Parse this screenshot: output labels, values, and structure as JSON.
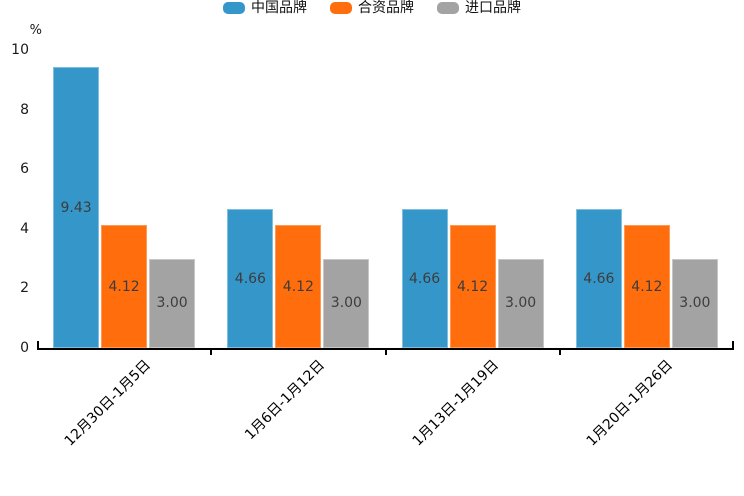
{
  "page": {
    "background": "#FFFFFF"
  },
  "chart_data": {
    "type": "bar",
    "title": "",
    "xlabel": "",
    "ylabel": "%",
    "categories": [
      "12月30日-1月5日",
      "1月6日-1月12日",
      "1月13日-1月19日",
      "1月20日-1月26日"
    ],
    "series": [
      {
        "name": "中国品牌",
        "color": "#3596C9",
        "edge_color": "#7FBEDF",
        "values": [
          9.43,
          4.66,
          4.66,
          4.66
        ]
      },
      {
        "name": "合资品牌",
        "color": "#FF6D0D",
        "edge_color": "#FF9A52",
        "values": [
          4.12,
          4.12,
          4.12,
          4.12
        ]
      },
      {
        "name": "进口品牌",
        "color": "#A3A3A3",
        "edge_color": "#C6C6C6",
        "values": [
          3.0,
          3.0,
          3.0,
          3.0
        ]
      }
    ],
    "yticks": [
      0,
      2,
      4,
      6,
      8,
      10
    ],
    "ylim": [
      0,
      10
    ],
    "grid": false,
    "legend_position": "top-center",
    "value_label_format": "2dp",
    "value_label_color": "#3D3D3D",
    "axis_color": "#000000",
    "tick_label_color": "#1A1A1A"
  }
}
